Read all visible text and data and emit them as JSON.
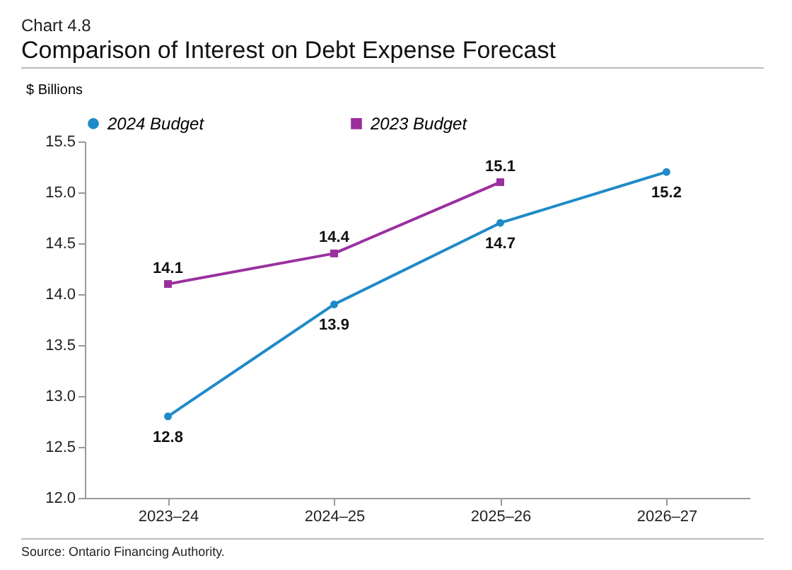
{
  "chart_data": {
    "type": "line",
    "title": "Comparison of Interest on Debt Expense Forecast",
    "ylabel": "$ Billions",
    "annotations": [
      "Chart 4.8",
      "Source: Ontario Financing Authority."
    ],
    "categories": [
      "2023–24",
      "2024–25",
      "2025–26",
      "2026–27"
    ],
    "series": [
      {
        "name": "2024 Budget",
        "color": "#1f8ac8",
        "marker": "circle",
        "values": [
          12.8,
          13.9,
          14.7,
          15.2
        ]
      },
      {
        "name": "2023 Budget",
        "color": "#9b2f9f",
        "marker": "square",
        "values": [
          14.1,
          14.4,
          15.1,
          null
        ]
      }
    ],
    "ylim": [
      12.0,
      15.5
    ],
    "yticks": [
      {
        "value": 12,
        "label": "12.0"
      },
      12.5,
      {
        "value": 13,
        "label": "13.0"
      },
      13.5,
      {
        "value": 14,
        "label": "14.0"
      },
      14.5,
      {
        "value": 15,
        "label": "15.0"
      },
      15.5
    ],
    "grid": false,
    "legend": "top",
    "data_labels": true
  }
}
